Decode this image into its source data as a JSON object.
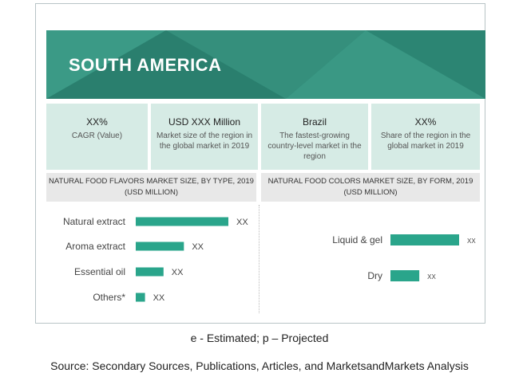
{
  "region_title": "SOUTH AMERICA",
  "colors": {
    "accent": "#2f8b79",
    "bar": "#2aa58b",
    "stat_bg": "#d6ebe5",
    "header_bg": "#e8e8e8"
  },
  "stats": [
    {
      "main": "XX%",
      "sub": "CAGR (Value)"
    },
    {
      "main": "USD XXX Million",
      "sub": "Market size of the region in the global market in 2019"
    },
    {
      "main": "Brazil",
      "sub": "The fastest-growing country-level market in the region"
    },
    {
      "main": "XX%",
      "sub": "Share of the region in the global market in 2019"
    }
  ],
  "chart_data": [
    {
      "type": "bar",
      "orientation": "horizontal",
      "title": "NATURAL FOOD FLAVORS MARKET SIZE, BY TYPE, 2019 (USD MILLION)",
      "categories": [
        "Natural extract",
        "Aroma extract",
        "Essential oil",
        "Others*"
      ],
      "values": [
        100,
        52,
        30,
        10
      ],
      "data_labels": [
        "XX",
        "XX",
        "XX",
        "XX"
      ],
      "xlim": [
        0,
        100
      ],
      "grid": false
    },
    {
      "type": "bar",
      "orientation": "horizontal",
      "title": "NATURAL FOOD COLORS MARKET SIZE, BY FORM, 2019 (USD MILLION)",
      "categories": [
        "Liquid & gel",
        "Dry"
      ],
      "values": [
        100,
        42
      ],
      "data_labels": [
        "XX",
        "XX"
      ],
      "xlim": [
        0,
        100
      ],
      "grid": false
    }
  ],
  "footnote": "e - Estimated; p – Projected",
  "source": "Source: Secondary Sources, Publications, Articles, and MarketsandMarkets Analysis"
}
